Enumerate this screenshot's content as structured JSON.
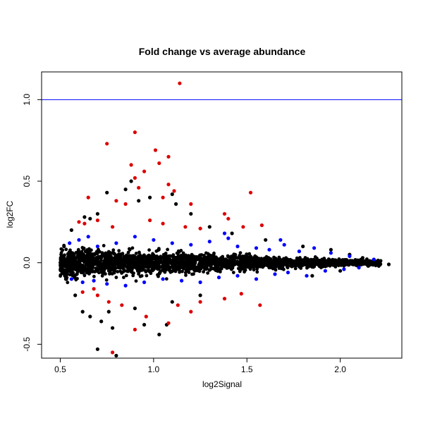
{
  "chart_data": {
    "type": "scatter",
    "title": "Fold change vs average abundance",
    "xlabel": "log2Signal",
    "ylabel": "log2FC",
    "xlim": [
      0.4,
      2.33
    ],
    "ylim": [
      -0.585,
      1.17
    ],
    "x_ticks": [
      0.5,
      1.0,
      1.5,
      2.0
    ],
    "x_tick_labels": [
      "0.5",
      "1.0",
      "1.5",
      "2.0"
    ],
    "y_ticks": [
      -0.5,
      0.0,
      0.5,
      1.0
    ],
    "y_tick_labels": [
      "-0.5",
      "0.0",
      "0.5",
      "1.0"
    ],
    "hline": {
      "y": 1.0,
      "color": "#0000ff"
    },
    "colors": {
      "nonsignificant": "#000000",
      "moderate": "#0000ff",
      "significant": "#dd0000"
    },
    "grid": false,
    "legend": "none",
    "series": [
      {
        "color_key": "nonsignificant",
        "points": [
          [
            0.75,
            0.43
          ],
          [
            0.85,
            0.45
          ],
          [
            0.88,
            0.5
          ],
          [
            0.92,
            0.38
          ],
          [
            0.98,
            0.4
          ],
          [
            1.1,
            0.42
          ],
          [
            1.12,
            0.36
          ],
          [
            0.7,
            0.3
          ],
          [
            0.66,
            0.27
          ],
          [
            1.2,
            0.3
          ],
          [
            1.3,
            0.22
          ],
          [
            1.42,
            0.18
          ],
          [
            1.6,
            0.14
          ],
          [
            1.8,
            0.1
          ],
          [
            1.95,
            0.08
          ],
          [
            2.05,
            0.05
          ],
          [
            2.12,
            0.03
          ],
          [
            2.2,
            0.01
          ],
          [
            2.26,
            -0.01
          ],
          [
            2.15,
            -0.02
          ],
          [
            2.0,
            -0.05
          ],
          [
            1.85,
            -0.08
          ],
          [
            0.72,
            -0.36
          ],
          [
            0.7,
            -0.53
          ],
          [
            0.8,
            -0.57
          ],
          [
            0.78,
            -0.4
          ],
          [
            0.95,
            -0.38
          ],
          [
            1.03,
            -0.44
          ],
          [
            1.07,
            -0.38
          ],
          [
            0.66,
            -0.33
          ],
          [
            0.62,
            -0.3
          ],
          [
            0.58,
            -0.2
          ],
          [
            0.53,
            -0.1
          ],
          [
            0.52,
            0.1
          ],
          [
            0.56,
            0.2
          ],
          [
            0.63,
            0.28
          ],
          [
            0.76,
            -0.3
          ],
          [
            0.9,
            -0.28
          ],
          [
            1.1,
            -0.24
          ],
          [
            1.25,
            -0.2
          ]
        ]
      },
      {
        "color_key": "moderate",
        "points": [
          [
            0.55,
            0.12
          ],
          [
            0.6,
            0.14
          ],
          [
            0.65,
            0.16
          ],
          [
            0.7,
            0.1
          ],
          [
            0.8,
            0.12
          ],
          [
            0.9,
            0.16
          ],
          [
            1.0,
            0.14
          ],
          [
            1.1,
            0.12
          ],
          [
            1.2,
            0.11
          ],
          [
            1.3,
            0.13
          ],
          [
            1.4,
            0.15
          ],
          [
            1.45,
            0.1
          ],
          [
            1.55,
            0.09
          ],
          [
            1.62,
            0.08
          ],
          [
            1.7,
            0.11
          ],
          [
            1.78,
            0.07
          ],
          [
            1.86,
            0.09
          ],
          [
            1.95,
            0.06
          ],
          [
            2.05,
            0.04
          ],
          [
            2.18,
            0.02
          ],
          [
            0.56,
            -0.1
          ],
          [
            0.62,
            -0.12
          ],
          [
            0.68,
            -0.11
          ],
          [
            0.75,
            -0.13
          ],
          [
            0.85,
            -0.14
          ],
          [
            0.95,
            -0.12
          ],
          [
            1.05,
            -0.1
          ],
          [
            1.15,
            -0.11
          ],
          [
            1.25,
            -0.12
          ],
          [
            1.35,
            -0.09
          ],
          [
            1.45,
            -0.08
          ],
          [
            1.55,
            -0.1
          ],
          [
            1.65,
            -0.07
          ],
          [
            1.72,
            -0.06
          ],
          [
            1.82,
            -0.08
          ],
          [
            1.92,
            -0.05
          ],
          [
            2.02,
            -0.04
          ],
          [
            2.1,
            -0.03
          ],
          [
            1.38,
            0.18
          ],
          [
            1.68,
            0.14
          ]
        ]
      },
      {
        "color_key": "significant",
        "points": [
          [
            1.14,
            1.1
          ],
          [
            0.9,
            0.8
          ],
          [
            0.75,
            0.73
          ],
          [
            1.01,
            0.69
          ],
          [
            1.08,
            0.65
          ],
          [
            0.88,
            0.6
          ],
          [
            0.95,
            0.56
          ],
          [
            1.03,
            0.61
          ],
          [
            0.9,
            0.52
          ],
          [
            1.08,
            0.48
          ],
          [
            1.11,
            0.44
          ],
          [
            1.52,
            0.43
          ],
          [
            0.92,
            0.46
          ],
          [
            0.65,
            0.4
          ],
          [
            0.8,
            0.38
          ],
          [
            0.85,
            0.36
          ],
          [
            1.05,
            0.4
          ],
          [
            1.2,
            0.36
          ],
          [
            1.38,
            0.3
          ],
          [
            1.4,
            0.27
          ],
          [
            1.48,
            0.22
          ],
          [
            1.58,
            0.23
          ],
          [
            0.7,
            0.26
          ],
          [
            0.63,
            0.24
          ],
          [
            0.6,
            0.25
          ],
          [
            0.98,
            0.26
          ],
          [
            1.05,
            0.24
          ],
          [
            1.17,
            0.22
          ],
          [
            1.25,
            0.21
          ],
          [
            0.78,
            0.22
          ],
          [
            0.62,
            -0.18
          ],
          [
            0.7,
            -0.2
          ],
          [
            0.76,
            -0.24
          ],
          [
            0.83,
            -0.26
          ],
          [
            0.9,
            -0.41
          ],
          [
            1.08,
            -0.37
          ],
          [
            1.13,
            -0.26
          ],
          [
            1.25,
            -0.24
          ],
          [
            1.38,
            -0.22
          ],
          [
            1.57,
            -0.26
          ],
          [
            0.78,
            -0.55
          ],
          [
            1.2,
            -0.3
          ],
          [
            0.96,
            -0.33
          ],
          [
            1.47,
            -0.19
          ],
          [
            0.68,
            -0.16
          ]
        ]
      }
    ]
  }
}
